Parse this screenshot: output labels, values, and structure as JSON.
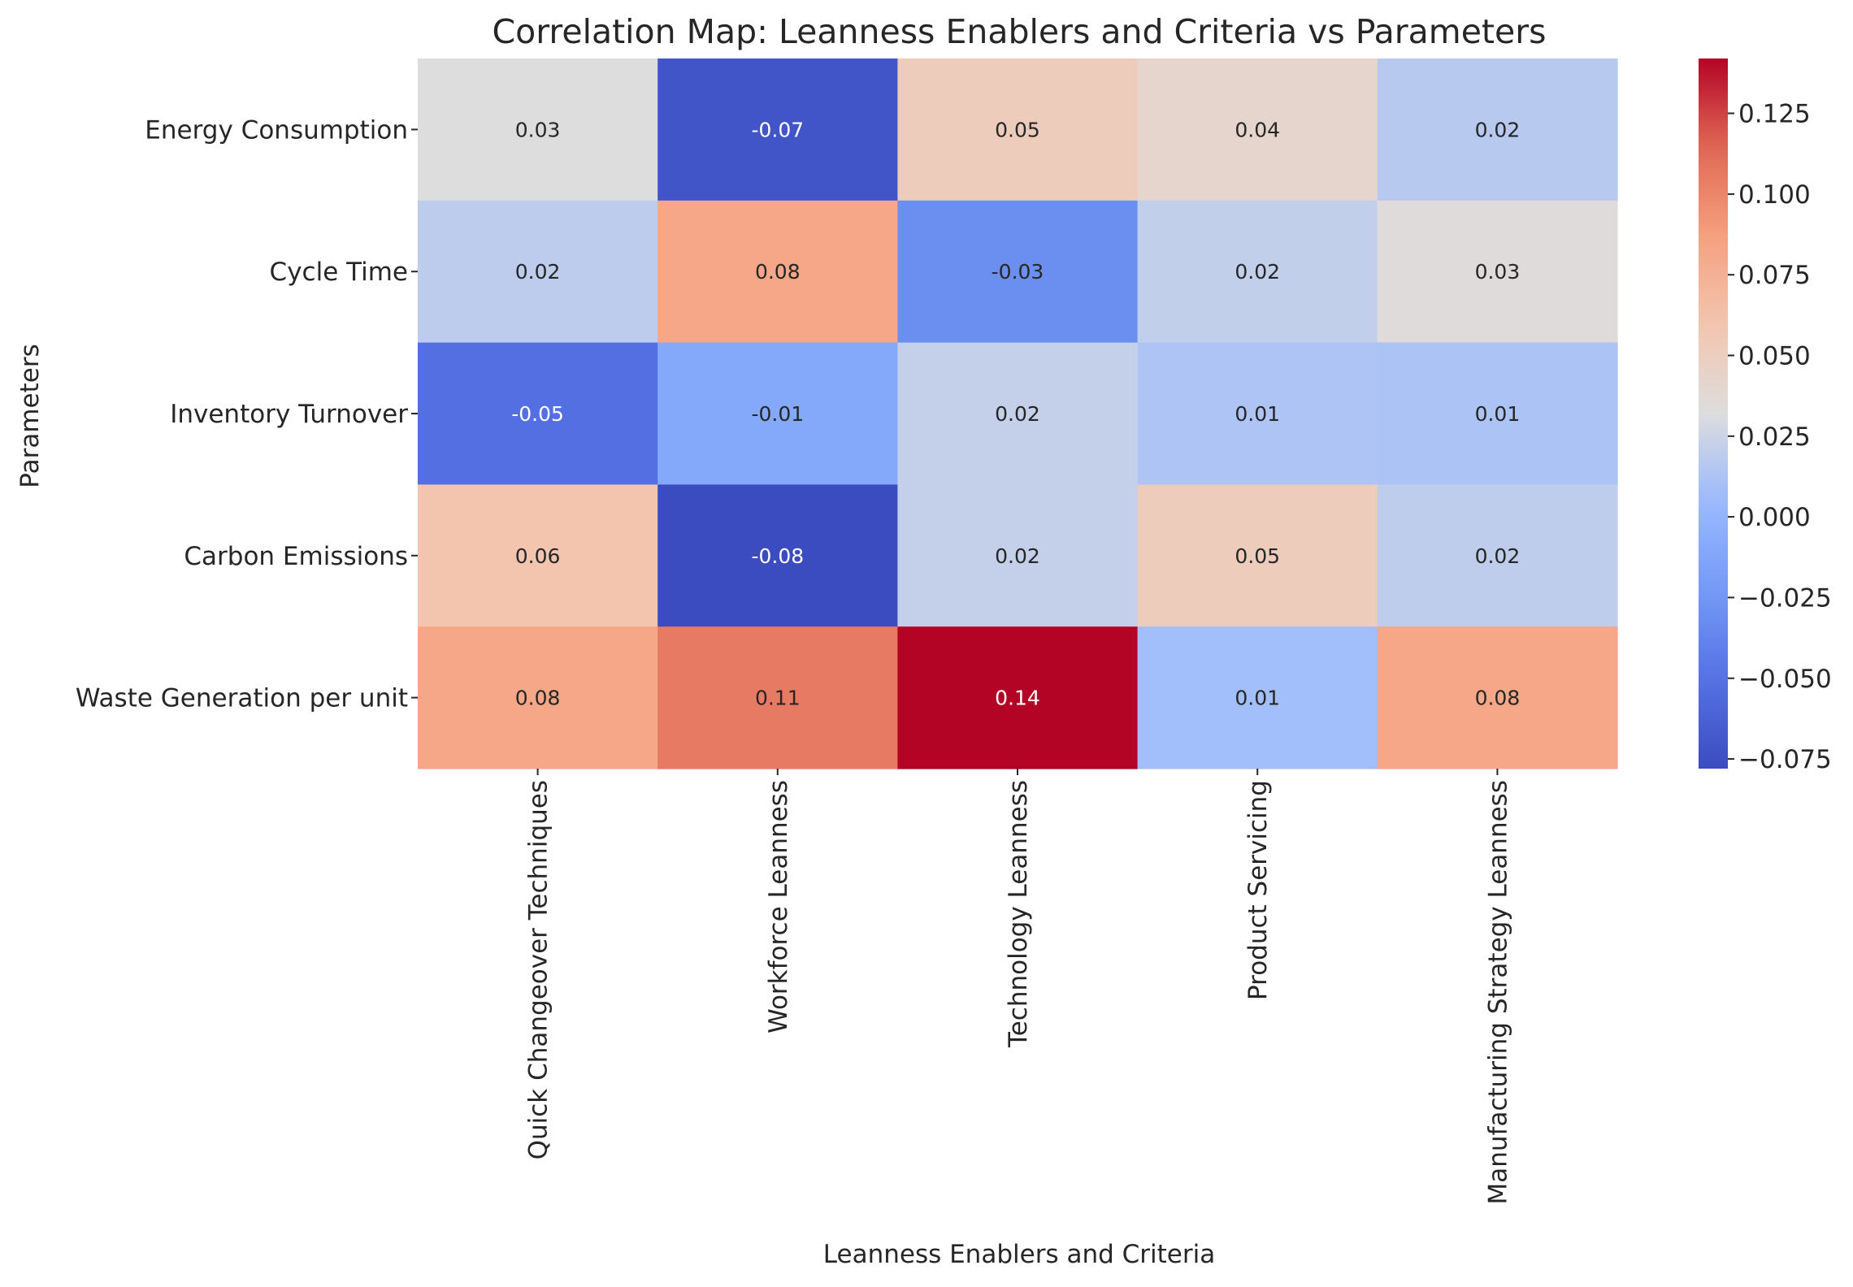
{
  "chart_data": {
    "type": "heatmap",
    "title": "Correlation Map: Leanness Enablers and Criteria vs Parameters",
    "xlabel": "Leanness Enablers and Criteria",
    "ylabel": "Parameters",
    "columns": [
      "Quick Changeover Techniques",
      "Workforce Leanness",
      "Technology Leanness",
      "Product Servicing",
      "Manufacturing Strategy Leanness"
    ],
    "rows": [
      "Energy Consumption",
      "Cycle Time",
      "Inventory Turnover",
      "Carbon Emissions",
      "Waste Generation per unit"
    ],
    "values": [
      [
        0.032,
        -0.072,
        0.052,
        0.042,
        0.017
      ],
      [
        0.019,
        0.082,
        -0.031,
        0.021,
        0.034
      ],
      [
        -0.052,
        -0.01,
        0.022,
        0.013,
        0.012
      ],
      [
        0.06,
        -0.078,
        0.022,
        0.052,
        0.02
      ],
      [
        0.082,
        0.106,
        0.142,
        0.008,
        0.082
      ]
    ],
    "cell_labels": [
      [
        "0.03",
        "-0.07",
        "0.05",
        "0.04",
        "0.02"
      ],
      [
        "0.02",
        "0.08",
        "-0.03",
        "0.02",
        "0.03"
      ],
      [
        "-0.05",
        "-0.01",
        "0.02",
        "0.01",
        "0.01"
      ],
      [
        "0.06",
        "-0.08",
        "0.02",
        "0.05",
        "0.02"
      ],
      [
        "0.08",
        "0.11",
        "0.14",
        "0.01",
        "0.08"
      ]
    ],
    "colormap": "coolwarm",
    "color_range": [
      -0.078,
      0.142
    ],
    "colorbar_ticks": [
      "−0.075",
      "−0.050",
      "−0.025",
      "0.000",
      "0.025",
      "0.050",
      "0.075",
      "0.100",
      "0.125"
    ],
    "colorbar_tick_values": [
      -0.075,
      -0.05,
      -0.025,
      0,
      0.025,
      0.05,
      0.075,
      0.1,
      0.125
    ],
    "legend": "colorbar-right",
    "grid": false
  }
}
